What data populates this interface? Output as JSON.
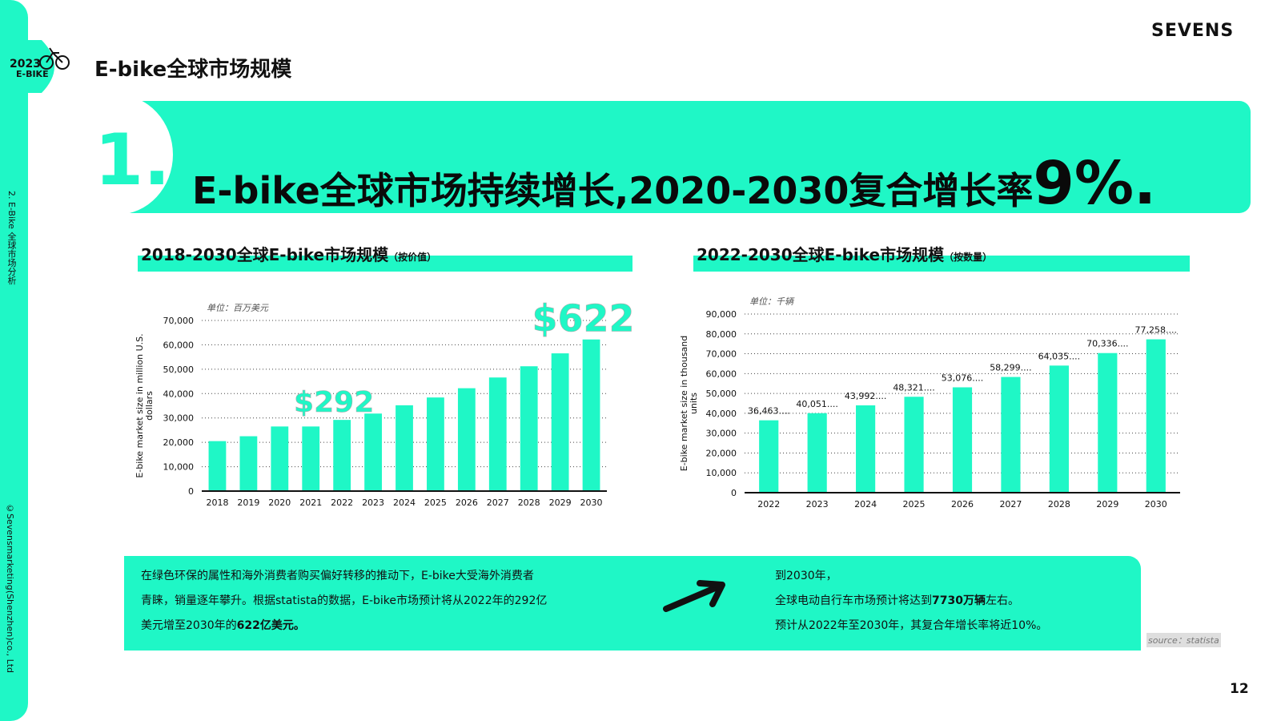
{
  "side": {
    "section_label": "2. E-Bike 全球市场分析",
    "copyright": "©Sevensmarketing(Shenzhen)co., Ltd"
  },
  "logo": {
    "line1": "2023",
    "line2": "E-BIKE",
    "icon": "bicycle-icon"
  },
  "brand": "SEVENS",
  "page_title": "E-bike全球市场规模",
  "banner": {
    "number": "1.",
    "headline": "E-bike全球市场持续增长,2020-2030复合增长率",
    "headline_highlight": "9%."
  },
  "chart_left": {
    "title": "2018-2030全球E-bike市场规模",
    "title_note": "（按价值）",
    "unit_note": "单位：百万美元"
  },
  "chart_right": {
    "title": "2022-2030全球E-bike市场规模",
    "title_note": "（按数量）",
    "unit_note": "单位：千辆"
  },
  "chart_data": [
    {
      "type": "bar",
      "categories": [
        "2018",
        "2019",
        "2020",
        "2021",
        "2022",
        "2023",
        "2024",
        "2025",
        "2026",
        "2027",
        "2028",
        "2029",
        "2030"
      ],
      "values": [
        20500,
        22500,
        26500,
        26500,
        29200,
        31800,
        35200,
        38400,
        42200,
        46600,
        51200,
        56500,
        62200
      ],
      "ylabel": "E-bike market size in million U.S. dollars",
      "ylim": [
        0,
        70000
      ],
      "yticks": [
        "0",
        "10,000",
        "20,000",
        "30,000",
        "40,000",
        "50,000",
        "60,000",
        "70,000"
      ],
      "grid": true,
      "annotations": [
        {
          "text": "$292",
          "category": "2022"
        },
        {
          "text": "$622",
          "category": "2030"
        }
      ],
      "colors": {
        "bar": "#1ff7c6",
        "annotation": "#1ff7c6"
      }
    },
    {
      "type": "bar",
      "categories": [
        "2022",
        "2023",
        "2024",
        "2025",
        "2026",
        "2027",
        "2028",
        "2029",
        "2030"
      ],
      "values": [
        36463,
        40051,
        43992,
        48321,
        53076,
        58299,
        64035,
        70336,
        77258
      ],
      "data_labels": [
        "36,463....",
        "40,051....",
        "43,992....",
        "48,321....",
        "53,076....",
        "58,299....",
        "64,035....",
        "70,336....",
        "77,258...."
      ],
      "ylabel": "E-bike market size in thousand units",
      "ylim": [
        0,
        90000
      ],
      "yticks": [
        "0",
        "10,000",
        "20,000",
        "30,000",
        "40,000",
        "50,000",
        "60,000",
        "70,000",
        "80,000",
        "90,000"
      ],
      "grid": true,
      "colors": {
        "bar": "#1ff7c6"
      }
    }
  ],
  "bottom": {
    "left_lines": [
      "在绿色环保的属性和海外消费者购买偏好转移的推动下，E-bike大受海外消费者",
      "青睐，销量逐年攀升。根据statista的数据，E-bike市场预计将从2022年的292亿",
      "美元增至2030年的"
    ],
    "left_bold": "622亿美元。",
    "arrow_icon": "arrow-right-icon",
    "right_line1": "到2030年，",
    "right_line2_pre": "全球电动自行车市场预计将达到",
    "right_line2_bold": "7730万辆",
    "right_line2_post": "左右。",
    "right_line3": "预计从2022年至2030年，其复合年增长率将近10%。",
    "source": "source：statista"
  },
  "page_number": "12",
  "colors": {
    "accent": "#1ff7c6",
    "text": "#111111"
  }
}
